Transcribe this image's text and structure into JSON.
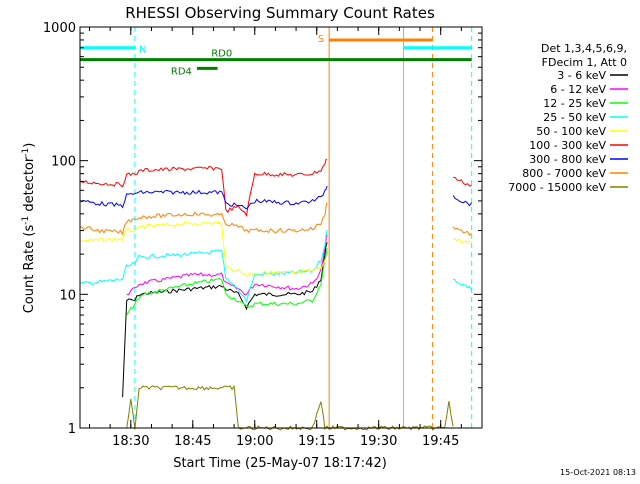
{
  "chart_data": {
    "type": "line",
    "title": "RHESSI Observing Summary Count Rates",
    "xlabel": "Start Time (25-May-07 18:17:42)",
    "ylabel_main": "Count Rate (s",
    "ylabel_sup1": "-1",
    "ylabel_mid": " detector",
    "ylabel_sup2": "-1",
    "ylabel_end": ")",
    "yscale": "log",
    "xlim": [
      "18:17:42",
      "19:55:00"
    ],
    "ylim": [
      1,
      1000
    ],
    "x_ticks": [
      "18:30",
      "18:45",
      "19:00",
      "19:15",
      "19:30",
      "19:45"
    ],
    "y_ticks": [
      "1",
      "10",
      "100",
      "1000"
    ],
    "legend": {
      "position": "right",
      "header": [
        "Det 1,3,4,5,6,9,",
        "FDecim 1, Att 0"
      ],
      "entries": [
        {
          "label": "3 - 6 keV",
          "color": "#000000"
        },
        {
          "label": "6 - 12 keV",
          "color": "#ff00ff"
        },
        {
          "label": "12 - 25 keV",
          "color": "#00ff00"
        },
        {
          "label": "25 - 50 keV",
          "color": "#00ffff"
        },
        {
          "label": "50 - 100 keV",
          "color": "#ffff00"
        },
        {
          "label": "100 - 300 keV",
          "color": "#ff0000"
        },
        {
          "label": "300 - 800 keV",
          "color": "#0000ff"
        },
        {
          "label": "800 - 7000 keV",
          "color": "#ff8000"
        },
        {
          "label": "7000 - 15000 keV",
          "color": "#808000"
        }
      ]
    },
    "flags": [
      {
        "label": "N",
        "color": "#00ffff",
        "level": 700,
        "segments": [
          [
            "18:17:42",
            "18:31:00"
          ],
          [
            "19:36:00",
            "19:52:30"
          ]
        ]
      },
      {
        "label": "S",
        "color": "#ff8000",
        "level": 800,
        "segments": [
          [
            "19:18:00",
            "19:43:00"
          ]
        ]
      },
      {
        "label": "RD0",
        "color": "#008000",
        "level": 570,
        "segments": [
          [
            "18:17:42",
            "19:52:30"
          ]
        ]
      },
      {
        "label": "RD4",
        "color": "#008000",
        "level": 490,
        "segments": [
          [
            "18:46:00",
            "18:51:00"
          ]
        ]
      }
    ],
    "vertical_markers": [
      {
        "time": "18:31:00",
        "color": "#00ffff",
        "style": "dashed"
      },
      {
        "time": "19:18:00",
        "color": "#ff8000",
        "style": "solid"
      },
      {
        "time": "19:36:00",
        "color": "#00ffff",
        "style": "solid"
      },
      {
        "time": "19:43:00",
        "color": "#ff8000",
        "style": "dashed"
      },
      {
        "time": "19:52:30",
        "color": "#00ffff",
        "style": "dashed"
      }
    ],
    "series": [
      {
        "name": "3 - 6 keV",
        "color": "#000000",
        "points": [
          [
            "18:28:00",
            1.7
          ],
          [
            "18:29:00",
            9
          ],
          [
            "18:31:00",
            9
          ],
          [
            "18:32:00",
            10
          ],
          [
            "18:45:00",
            11
          ],
          [
            "18:52:00",
            11.5
          ],
          [
            "18:53:00",
            11
          ],
          [
            "18:56:00",
            10
          ],
          [
            "18:58:00",
            8
          ],
          [
            "19:00:00",
            10
          ],
          [
            "19:10:00",
            10
          ],
          [
            "19:14:00",
            10.5
          ],
          [
            "19:16:00",
            13
          ],
          [
            "19:17:00",
            20
          ],
          [
            "19:17:30",
            25
          ]
        ]
      },
      {
        "name": "6 - 12 keV",
        "color": "#ff00ff",
        "points": [
          [
            "18:29:00",
            10
          ],
          [
            "18:31:00",
            11
          ],
          [
            "18:32:00",
            12
          ],
          [
            "18:45:00",
            14
          ],
          [
            "18:52:00",
            14
          ],
          [
            "18:53:00",
            12
          ],
          [
            "18:56:00",
            11
          ],
          [
            "18:58:00",
            10
          ],
          [
            "19:00:00",
            12
          ],
          [
            "19:10:00",
            11
          ],
          [
            "19:14:00",
            12
          ],
          [
            "19:16:00",
            15
          ],
          [
            "19:17:00",
            22
          ],
          [
            "19:17:30",
            28
          ]
        ]
      },
      {
        "name": "12 - 25 keV",
        "color": "#00ff00",
        "points": [
          [
            "18:29:00",
            7
          ],
          [
            "18:31:00",
            8.5
          ],
          [
            "18:33:00",
            10
          ],
          [
            "18:45:00",
            12
          ],
          [
            "18:52:00",
            13
          ],
          [
            "18:53:00",
            10
          ],
          [
            "18:56:00",
            9
          ],
          [
            "18:58:00",
            8
          ],
          [
            "19:00:00",
            8.5
          ],
          [
            "19:10:00",
            8.5
          ],
          [
            "19:14:00",
            9
          ],
          [
            "19:16:00",
            12
          ],
          [
            "19:17:00",
            18
          ],
          [
            "19:17:30",
            22
          ]
        ]
      },
      {
        "name": "25 - 50 keV",
        "color": "#00ffff",
        "points": [
          [
            "18:17:42",
            12
          ],
          [
            "18:24:00",
            12.5
          ],
          [
            "18:28:00",
            13
          ],
          [
            "18:29:00",
            16
          ],
          [
            "18:31:00",
            17
          ],
          [
            "18:32:00",
            19
          ],
          [
            "18:45:00",
            20
          ],
          [
            "18:52:00",
            21
          ],
          [
            "18:53:00",
            13
          ],
          [
            "18:56:00",
            11
          ],
          [
            "18:58:00",
            9
          ],
          [
            "19:00:00",
            14
          ],
          [
            "19:10:00",
            14.5
          ],
          [
            "19:14:00",
            15
          ],
          [
            "19:16:00",
            18
          ],
          [
            "19:17:00",
            24
          ],
          [
            "19:17:30",
            30
          ],
          [
            "19:48:00",
            13
          ],
          [
            "19:50:00",
            12
          ],
          [
            "19:52:30",
            11
          ]
        ]
      },
      {
        "name": "50 - 100 keV",
        "color": "#ffff00",
        "points": [
          [
            "18:17:42",
            25
          ],
          [
            "18:24:00",
            25.5
          ],
          [
            "18:28:00",
            26
          ],
          [
            "18:29:00",
            30
          ],
          [
            "18:31:00",
            30
          ],
          [
            "18:33:00",
            32
          ],
          [
            "18:45:00",
            34
          ],
          [
            "18:52:00",
            34
          ],
          [
            "18:53:00",
            16
          ],
          [
            "18:56:00",
            15
          ],
          [
            "18:58:00",
            14
          ],
          [
            "19:00:00",
            14.5
          ],
          [
            "19:10:00",
            14.5
          ],
          [
            "19:14:00",
            15
          ],
          [
            "19:16:00",
            16
          ],
          [
            "19:17:00",
            18
          ],
          [
            "19:48:00",
            26
          ],
          [
            "19:50:00",
            25
          ],
          [
            "19:52:30",
            24
          ]
        ]
      },
      {
        "name": "100 - 300 keV",
        "color": "#ff0000",
        "points": [
          [
            "18:17:42",
            70
          ],
          [
            "18:22:00",
            68
          ],
          [
            "18:28:00",
            66
          ],
          [
            "18:29:00",
            78
          ],
          [
            "18:31:00",
            80
          ],
          [
            "18:33:00",
            85
          ],
          [
            "18:45:00",
            87
          ],
          [
            "18:52:00",
            88
          ],
          [
            "18:53:00",
            42
          ],
          [
            "18:56:00",
            45
          ],
          [
            "18:58:00",
            40
          ],
          [
            "19:00:00",
            80
          ],
          [
            "19:10:00",
            78
          ],
          [
            "19:14:00",
            80
          ],
          [
            "19:16:00",
            85
          ],
          [
            "19:17:00",
            95
          ],
          [
            "19:17:30",
            105
          ],
          [
            "19:48:00",
            75
          ],
          [
            "19:50:00",
            70
          ],
          [
            "19:52:30",
            65
          ]
        ]
      },
      {
        "name": "300 - 800 keV",
        "color": "#0000ff",
        "points": [
          [
            "18:17:42",
            50
          ],
          [
            "18:22:00",
            48
          ],
          [
            "18:28:00",
            46
          ],
          [
            "18:29:00",
            55
          ],
          [
            "18:31:00",
            57
          ],
          [
            "18:33:00",
            58
          ],
          [
            "18:45:00",
            58
          ],
          [
            "18:52:00",
            58
          ],
          [
            "18:53:00",
            48
          ],
          [
            "18:56:00",
            46
          ],
          [
            "18:58:00",
            44
          ],
          [
            "19:00:00",
            50
          ],
          [
            "19:10:00",
            48
          ],
          [
            "19:14:00",
            50
          ],
          [
            "19:16:00",
            53
          ],
          [
            "19:17:00",
            60
          ],
          [
            "19:17:30",
            65
          ],
          [
            "19:48:00",
            55
          ],
          [
            "19:50:00",
            50
          ],
          [
            "19:52:30",
            47
          ]
        ]
      },
      {
        "name": "800 - 7000 keV",
        "color": "#ff8000",
        "points": [
          [
            "18:17:42",
            32
          ],
          [
            "18:22:00",
            30
          ],
          [
            "18:28:00",
            29
          ],
          [
            "18:29:00",
            35
          ],
          [
            "18:31:00",
            37
          ],
          [
            "18:33:00",
            38
          ],
          [
            "18:45:00",
            40
          ],
          [
            "18:52:00",
            39
          ],
          [
            "18:53:00",
            34
          ],
          [
            "18:56:00",
            32
          ],
          [
            "18:58:00",
            30
          ],
          [
            "19:00:00",
            30
          ],
          [
            "19:10:00",
            30
          ],
          [
            "19:14:00",
            31
          ],
          [
            "19:16:00",
            34
          ],
          [
            "19:17:00",
            40
          ],
          [
            "19:17:30",
            50
          ],
          [
            "19:48:00",
            32
          ],
          [
            "19:50:00",
            30
          ],
          [
            "19:52:30",
            28
          ]
        ]
      },
      {
        "name": "7000 - 15000 keV",
        "color": "#808000",
        "points": [
          [
            "18:29:00",
            1
          ],
          [
            "18:30:00",
            1.6
          ],
          [
            "18:31:00",
            1
          ],
          [
            "18:32:00",
            2
          ],
          [
            "18:55:00",
            2
          ],
          [
            "18:56:00",
            1
          ],
          [
            "19:14:00",
            1
          ],
          [
            "19:16:00",
            1.6
          ],
          [
            "19:17:00",
            1
          ],
          [
            "19:46:00",
            1
          ],
          [
            "19:47:00",
            1.6
          ],
          [
            "19:48:00",
            1
          ]
        ]
      }
    ]
  },
  "footer_timestamp": "15-Oct-2021 08:13"
}
